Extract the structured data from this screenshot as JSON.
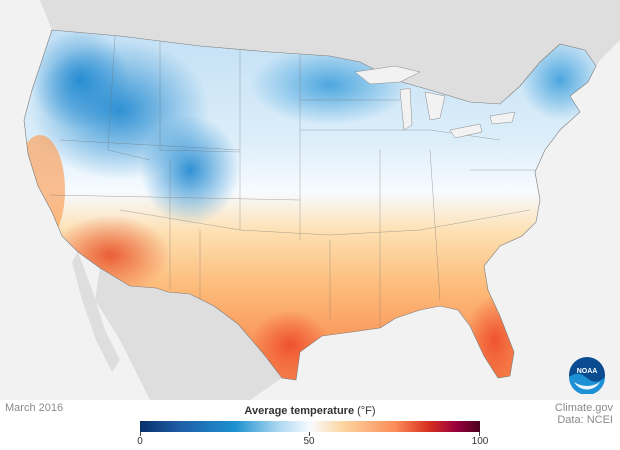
{
  "map": {
    "date": "March 2016",
    "credit_line1": "Climate.gov",
    "credit_line2": "Data: NCEI",
    "legend": {
      "title": "Average temperature",
      "unit": "(°F)",
      "ticks": [
        "0",
        "50",
        "100"
      ],
      "min": 0,
      "max": 100
    },
    "logo_text": "NOAA",
    "colors": {
      "cold": "#1d91d0",
      "neutral": "#f7fbff",
      "warm": "#fc8d59",
      "hot": "#d7301f",
      "land_background": "#e0e0e0",
      "ocean": "#f2f2f2"
    }
  }
}
